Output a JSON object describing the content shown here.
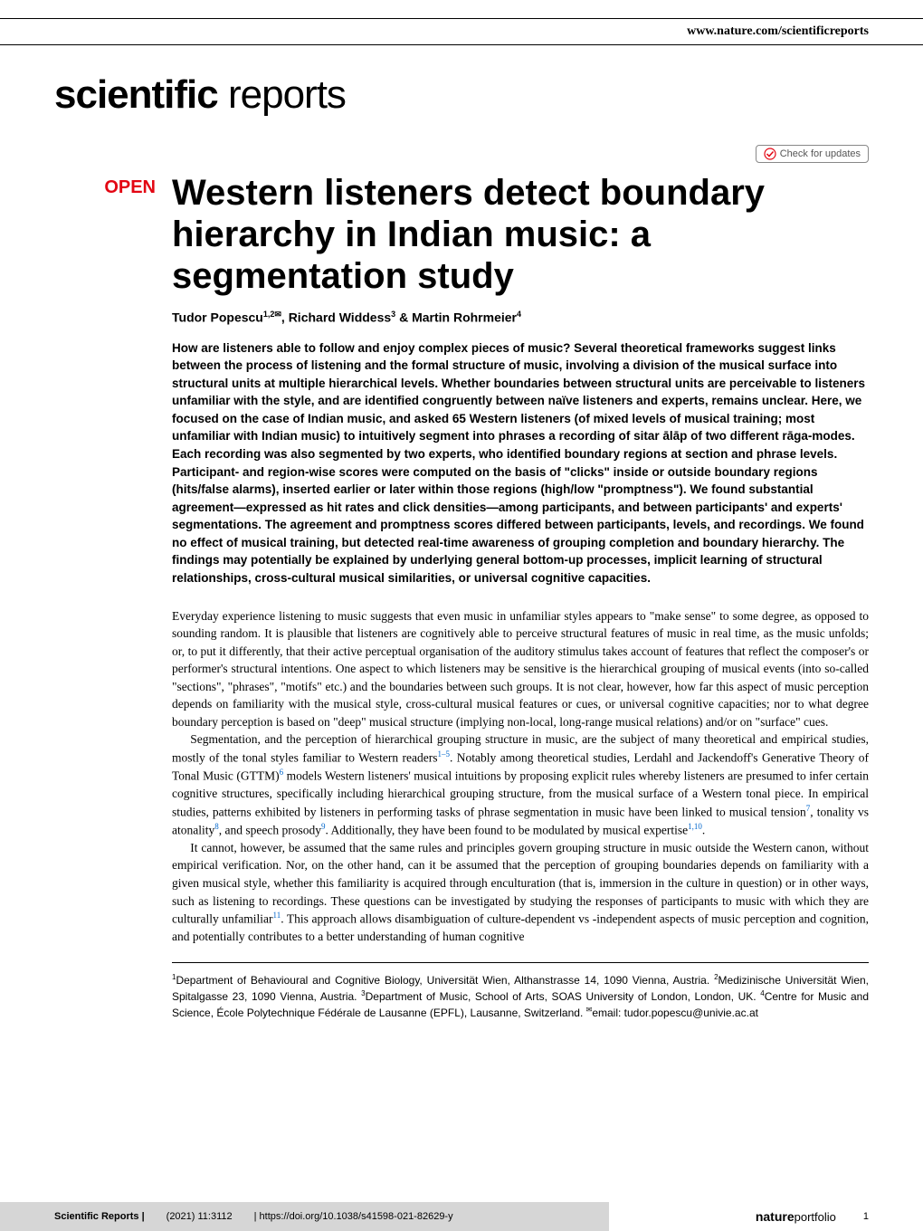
{
  "header": {
    "site_url": "www.nature.com/scientificreports"
  },
  "journal": {
    "logo_bold": "scientific",
    "logo_light": " reports"
  },
  "check_updates": {
    "label": "Check for updates"
  },
  "badge": {
    "open": "OPEN"
  },
  "article": {
    "title": "Western listeners detect boundary hierarchy in Indian music: a segmentation study",
    "authors_html": "Tudor Popescu<sup>1,2✉</sup>, Richard Widdess<sup>3</sup> & Martin Rohrmeier<sup>4</sup>",
    "abstract": "How are listeners able to follow and enjoy complex pieces of music? Several theoretical frameworks suggest links between the process of listening and the formal structure of music, involving a division of the musical surface into structural units at multiple hierarchical levels. Whether boundaries between structural units are perceivable to listeners unfamiliar with the style, and are identified congruently between naïve listeners and experts, remains unclear. Here, we focused on the case of Indian music, and asked 65 Western listeners (of mixed levels of musical training; most unfamiliar with Indian music) to intuitively segment into phrases a recording of sitar ālāp of two different rāga-modes. Each recording was also segmented by two experts, who identified boundary regions at section and phrase levels. Participant- and region-wise scores were computed on the basis of \"clicks\" inside or outside boundary regions (hits/false alarms), inserted earlier or later within those regions (high/low \"promptness\"). We found substantial agreement—expressed as hit rates and click densities—among participants, and between participants' and experts' segmentations. The agreement and promptness scores differed between participants, levels, and recordings. We found no effect of musical training, but detected real-time awareness of grouping completion and boundary hierarchy. The findings may potentially be explained by underlying general bottom-up processes, implicit learning of structural relationships, cross-cultural musical similarities, or universal cognitive capacities.",
    "paragraphs": [
      "Everyday experience listening to music suggests that even music in unfamiliar styles appears to \"make sense\" to some degree, as opposed to sounding random. It is plausible that listeners are cognitively able to perceive structural features of music in real time, as the music unfolds; or, to put it differently, that their active perceptual organisation of the auditory stimulus takes account of features that reflect the composer's or performer's structural intentions. One aspect to which listeners may be sensitive is the hierarchical grouping of musical events (into so-called \"sections\", \"phrases\", \"motifs\" etc.) and the boundaries between such groups. It is not clear, however, how far this aspect of music perception depends on familiarity with the musical style, cross-cultural musical features or cues, or universal cognitive capacities; nor to what degree boundary perception is based on \"deep\" musical structure (implying non-local, long-range musical relations) and/or on \"surface\" cues.",
      "Segmentation, and the perception of hierarchical grouping structure in music, are the subject of many theoretical and empirical studies, mostly of the tonal styles familiar to Western readers<sup>1–5</sup>. Notably among theoretical studies, Lerdahl and Jackendoff's Generative Theory of Tonal Music (GTTM)<sup>6</sup> models Western listeners' musical intuitions by proposing explicit rules whereby listeners are presumed to infer certain cognitive structures, specifically including hierarchical grouping structure, from the musical surface of a Western tonal piece. In empirical studies, patterns exhibited by listeners in performing tasks of phrase segmentation in music have been linked to musical tension<sup>7</sup>, tonality vs atonality<sup>8</sup>, and speech prosody<sup>9</sup>. Additionally, they have been found to be modulated by musical expertise<sup>1,10</sup>.",
      "It cannot, however, be assumed that the same rules and principles govern grouping structure in music outside the Western canon, without empirical verification. Nor, on the other hand, can it be assumed that the perception of grouping boundaries depends on familiarity with a given musical style, whether this familiarity is acquired through enculturation (that is, immersion in the culture in question) or in other ways, such as listening to recordings. These questions can be investigated by studying the responses of participants to music with which they are culturally unfamiliar<sup>11</sup>. This approach allows disambiguation of culture-dependent vs -independent aspects of music perception and cognition, and potentially contributes to a better understanding of human cognitive"
    ],
    "affiliations": "<sup>1</sup>Department of Behavioural and Cognitive Biology, Universität Wien, Althanstrasse 14, 1090 Vienna, Austria. <sup>2</sup>Medizinische Universität Wien, Spitalgasse 23, 1090 Vienna, Austria. <sup>3</sup>Department of Music, School of Arts, SOAS University of London, London, UK. <sup>4</sup>Centre for Music and Science, École Polytechnique Fédérale de Lausanne (EPFL), Lausanne, Switzerland. <sup>✉</sup>email: tudor.popescu@univie.ac.at"
  },
  "footer": {
    "journal_name": "Scientific Reports |",
    "citation": "(2021) 11:3112",
    "doi": "| https://doi.org/10.1038/s41598-021-82629-y",
    "publisher_bold": "nature",
    "publisher_light": "portfolio",
    "page_num": "1"
  },
  "colors": {
    "open_red": "#e30613",
    "ref_blue": "#0066cc",
    "footer_grey": "#d6d6d6",
    "text": "#000000",
    "background": "#ffffff"
  }
}
